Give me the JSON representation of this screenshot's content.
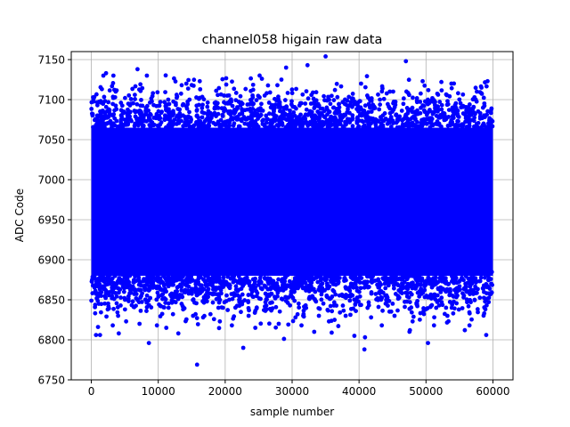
{
  "chart_data": {
    "type": "scatter",
    "title": "channel058 higain raw data",
    "xlabel": "sample number",
    "ylabel": "ADC Code",
    "xlim": [
      -3000,
      63000
    ],
    "ylim": [
      6750,
      7160
    ],
    "xticks": [
      0,
      10000,
      20000,
      30000,
      40000,
      50000,
      60000
    ],
    "yticks": [
      6750,
      6800,
      6850,
      6900,
      6950,
      7000,
      7050,
      7100,
      7150
    ],
    "grid": true,
    "marker_color": "#0000ff",
    "series": [
      {
        "n_samples": 60000,
        "core_band": [
          6880,
          7065
        ],
        "outliers": [
          {
            "x": 1000,
            "y": 6816
          },
          {
            "x": 700,
            "y": 6806
          },
          {
            "x": 1300,
            "y": 6806
          },
          {
            "x": 1800,
            "y": 7130
          },
          {
            "x": 2200,
            "y": 7133
          },
          {
            "x": 3300,
            "y": 7130
          },
          {
            "x": 3200,
            "y": 6818
          },
          {
            "x": 4000,
            "y": 6830
          },
          {
            "x": 4100,
            "y": 6808
          },
          {
            "x": 5200,
            "y": 6823
          },
          {
            "x": 6500,
            "y": 7106
          },
          {
            "x": 6900,
            "y": 7138
          },
          {
            "x": 7200,
            "y": 6820
          },
          {
            "x": 8300,
            "y": 7130
          },
          {
            "x": 8600,
            "y": 6796
          },
          {
            "x": 9200,
            "y": 7108
          },
          {
            "x": 9800,
            "y": 6818
          },
          {
            "x": 10400,
            "y": 6842
          },
          {
            "x": 11200,
            "y": 6815
          },
          {
            "x": 12200,
            "y": 6832
          },
          {
            "x": 13000,
            "y": 6808
          },
          {
            "x": 13500,
            "y": 7118
          },
          {
            "x": 14200,
            "y": 7120
          },
          {
            "x": 15200,
            "y": 6830
          },
          {
            "x": 16200,
            "y": 7123
          },
          {
            "x": 16700,
            "y": 6828
          },
          {
            "x": 15800,
            "y": 6769
          },
          {
            "x": 17800,
            "y": 6832
          },
          {
            "x": 19200,
            "y": 6823
          },
          {
            "x": 20300,
            "y": 7105
          },
          {
            "x": 21000,
            "y": 6818
          },
          {
            "x": 22700,
            "y": 6790
          },
          {
            "x": 23500,
            "y": 6830
          },
          {
            "x": 24500,
            "y": 6815
          },
          {
            "x": 26200,
            "y": 7108
          },
          {
            "x": 27800,
            "y": 7118
          },
          {
            "x": 28400,
            "y": 7125
          },
          {
            "x": 29100,
            "y": 7140
          },
          {
            "x": 28000,
            "y": 6820
          },
          {
            "x": 30500,
            "y": 6828
          },
          {
            "x": 31400,
            "y": 6818
          },
          {
            "x": 32300,
            "y": 7143
          },
          {
            "x": 33300,
            "y": 6810
          },
          {
            "x": 34000,
            "y": 6830
          },
          {
            "x": 35000,
            "y": 7154
          },
          {
            "x": 35500,
            "y": 6823
          },
          {
            "x": 36400,
            "y": 7112
          },
          {
            "x": 38000,
            "y": 6830
          },
          {
            "x": 39300,
            "y": 6805
          },
          {
            "x": 40300,
            "y": 7120
          },
          {
            "x": 40800,
            "y": 6788
          },
          {
            "x": 41800,
            "y": 6828
          },
          {
            "x": 43400,
            "y": 6818
          },
          {
            "x": 44600,
            "y": 7110
          },
          {
            "x": 45300,
            "y": 6830
          },
          {
            "x": 47000,
            "y": 7148
          },
          {
            "x": 47600,
            "y": 6812
          },
          {
            "x": 48000,
            "y": 6823
          },
          {
            "x": 49500,
            "y": 7123
          },
          {
            "x": 50300,
            "y": 6796
          },
          {
            "x": 51200,
            "y": 6818
          },
          {
            "x": 52300,
            "y": 7122
          },
          {
            "x": 53200,
            "y": 6830
          },
          {
            "x": 53800,
            "y": 7120
          },
          {
            "x": 54800,
            "y": 7108
          },
          {
            "x": 55800,
            "y": 6812
          },
          {
            "x": 56500,
            "y": 6818
          },
          {
            "x": 57600,
            "y": 7110
          },
          {
            "x": 59200,
            "y": 7123
          },
          {
            "x": 59000,
            "y": 6806
          },
          {
            "x": 58700,
            "y": 6833
          }
        ]
      }
    ]
  }
}
